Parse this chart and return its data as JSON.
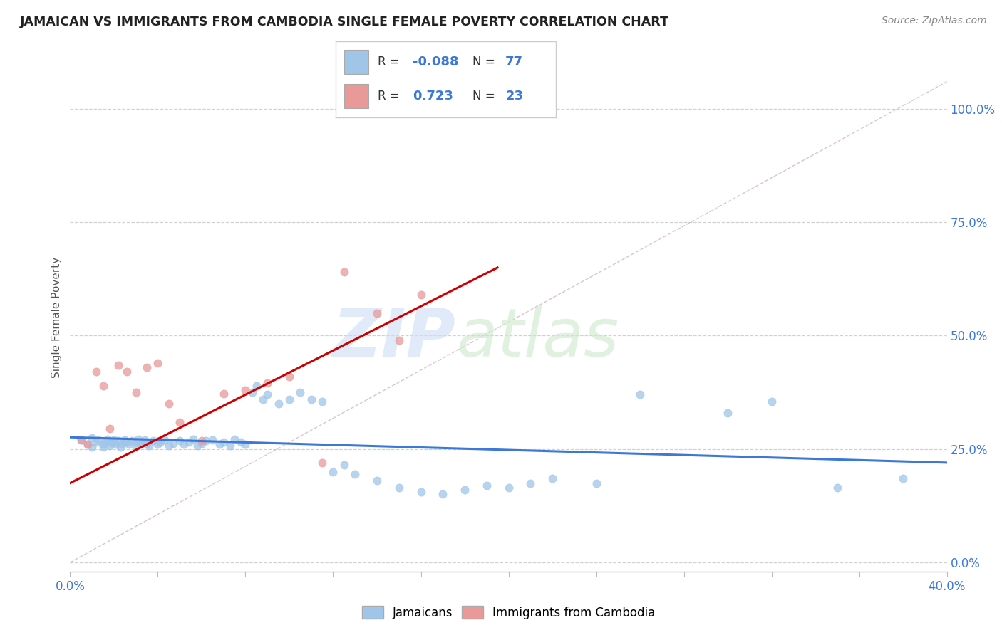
{
  "title": "JAMAICAN VS IMMIGRANTS FROM CAMBODIA SINGLE FEMALE POVERTY CORRELATION CHART",
  "source": "Source: ZipAtlas.com",
  "ylabel": "Single Female Poverty",
  "xlim": [
    0.0,
    0.4
  ],
  "ylim": [
    -0.02,
    1.1
  ],
  "right_ytick_vals": [
    0.0,
    0.25,
    0.5,
    0.75,
    1.0
  ],
  "right_yticklabels": [
    "0.0%",
    "25.0%",
    "50.0%",
    "75.0%",
    "100.0%"
  ],
  "blue_color": "#9fc5e8",
  "pink_color": "#ea9999",
  "trend_blue": "#3c78d8",
  "trend_pink": "#cc0000",
  "ref_line_color": "#ccaabb",
  "background": "#ffffff",
  "grid_color": "#cccccc",
  "blue_scatter_x": [
    0.005,
    0.008,
    0.01,
    0.01,
    0.012,
    0.013,
    0.015,
    0.015,
    0.016,
    0.017,
    0.018,
    0.019,
    0.02,
    0.02,
    0.021,
    0.022,
    0.023,
    0.024,
    0.025,
    0.026,
    0.027,
    0.028,
    0.03,
    0.03,
    0.031,
    0.032,
    0.033,
    0.034,
    0.035,
    0.036,
    0.038,
    0.04,
    0.041,
    0.043,
    0.045,
    0.047,
    0.05,
    0.052,
    0.054,
    0.056,
    0.058,
    0.06,
    0.062,
    0.065,
    0.068,
    0.07,
    0.073,
    0.075,
    0.078,
    0.08,
    0.083,
    0.085,
    0.088,
    0.09,
    0.095,
    0.1,
    0.105,
    0.11,
    0.115,
    0.12,
    0.125,
    0.13,
    0.14,
    0.15,
    0.16,
    0.17,
    0.18,
    0.19,
    0.2,
    0.21,
    0.22,
    0.24,
    0.26,
    0.3,
    0.32,
    0.35,
    0.38
  ],
  "blue_scatter_y": [
    0.27,
    0.26,
    0.275,
    0.255,
    0.265,
    0.27,
    0.26,
    0.255,
    0.268,
    0.272,
    0.258,
    0.263,
    0.27,
    0.265,
    0.26,
    0.268,
    0.255,
    0.262,
    0.27,
    0.265,
    0.26,
    0.268,
    0.265,
    0.258,
    0.272,
    0.26,
    0.265,
    0.27,
    0.262,
    0.258,
    0.268,
    0.26,
    0.265,
    0.27,
    0.258,
    0.262,
    0.268,
    0.26,
    0.265,
    0.272,
    0.258,
    0.262,
    0.268,
    0.27,
    0.26,
    0.265,
    0.258,
    0.272,
    0.265,
    0.26,
    0.375,
    0.39,
    0.36,
    0.37,
    0.35,
    0.36,
    0.375,
    0.36,
    0.355,
    0.2,
    0.215,
    0.195,
    0.18,
    0.165,
    0.155,
    0.15,
    0.16,
    0.17,
    0.165,
    0.175,
    0.185,
    0.175,
    0.37,
    0.33,
    0.355,
    0.165,
    0.185
  ],
  "pink_scatter_x": [
    0.005,
    0.008,
    0.012,
    0.015,
    0.018,
    0.022,
    0.026,
    0.03,
    0.035,
    0.04,
    0.045,
    0.05,
    0.06,
    0.07,
    0.08,
    0.09,
    0.1,
    0.115,
    0.125,
    0.14,
    0.15,
    0.16,
    0.195
  ],
  "pink_scatter_y": [
    0.27,
    0.26,
    0.42,
    0.39,
    0.295,
    0.435,
    0.42,
    0.375,
    0.43,
    0.44,
    0.35,
    0.31,
    0.268,
    0.372,
    0.38,
    0.395,
    0.41,
    0.22,
    0.64,
    0.55,
    0.49,
    0.59,
    1.005
  ],
  "blue_trend_x": [
    0.0,
    0.4
  ],
  "blue_trend_y": [
    0.276,
    0.22
  ],
  "pink_trend_x": [
    0.0,
    0.195
  ],
  "pink_trend_y": [
    0.175,
    0.65
  ],
  "ref_line_x": [
    0.0,
    0.4
  ],
  "ref_line_y": [
    0.0,
    1.06
  ]
}
